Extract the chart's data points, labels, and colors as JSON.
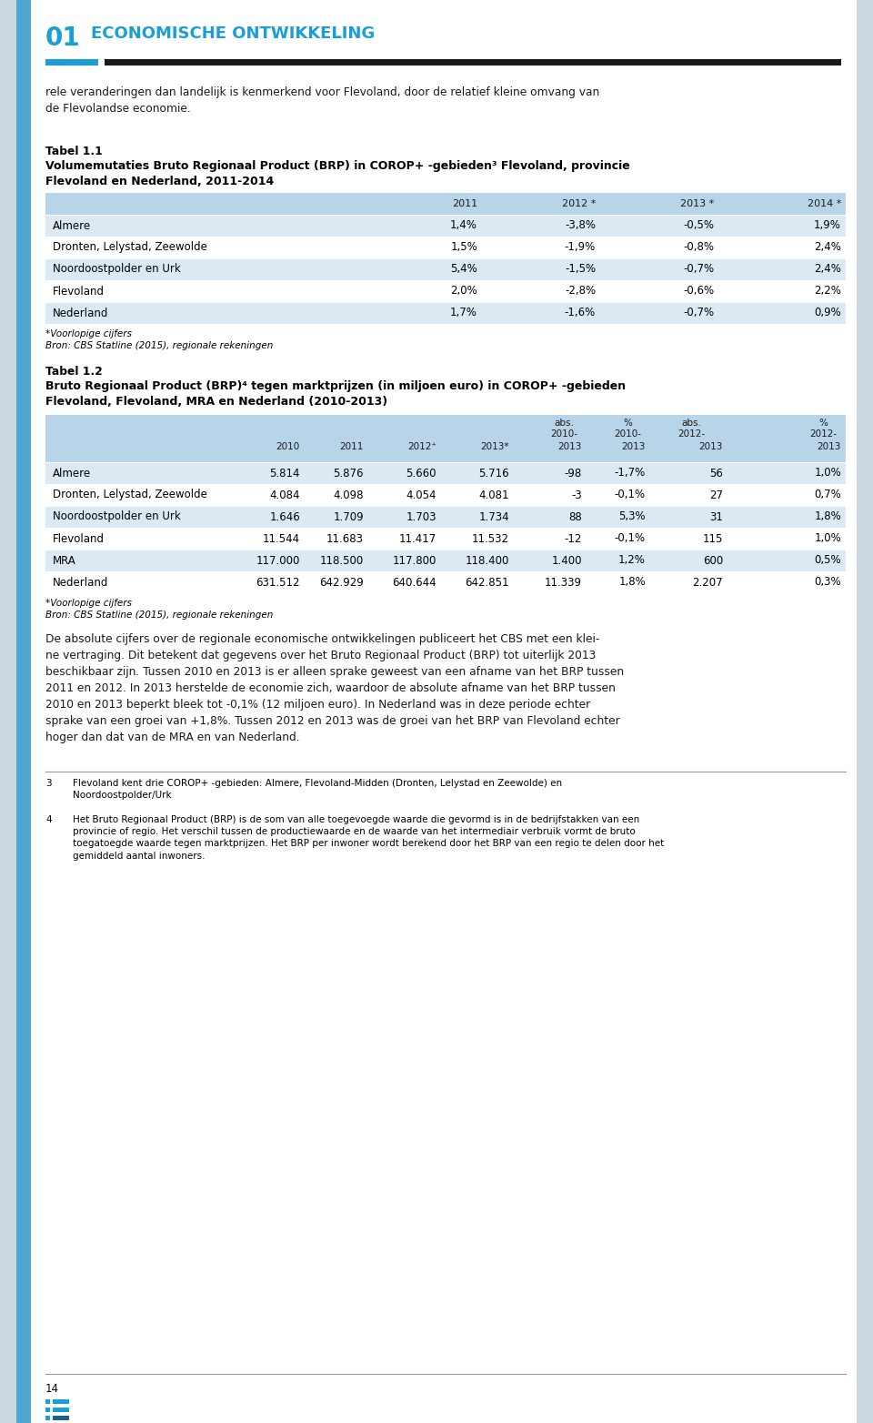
{
  "page_bg": "#ccd9e3",
  "content_bg": "#ffffff",
  "blue_accent": "#1a9fd4",
  "dark_bar": "#1a1a1a",
  "table_header_bg": "#b8d4e8",
  "table_row_light": "#dce9f3",
  "sidebar_blue": "#4fa8d0",
  "header_number": "01",
  "header_title": "ECONOMISCHE ONTWIKKELING",
  "intro_text": "rele veranderingen dan landelijk is kenmerkend voor Flevoland, door de relatief kleine omvang van\nde Flevolandse economie.",
  "tabel1_label": "Tabel 1.1",
  "tabel1_title": "Volumemutaties Bruto Regionaal Product (BRP) in COROP+ -gebieden³ Flevoland, provincie\nFlevoland en Nederland, 2011-2014",
  "tabel1_col_headers": [
    "2011",
    "2012 *",
    "2013 *",
    "2014 *"
  ],
  "tabel1_rows": [
    [
      "Almere",
      "1,4%",
      "-3,8%",
      "-0,5%",
      "1,9%"
    ],
    [
      "Dronten, Lelystad, Zeewolde",
      "1,5%",
      "-1,9%",
      "-0,8%",
      "2,4%"
    ],
    [
      "Noordoostpolder en Urk",
      "5,4%",
      "-1,5%",
      "-0,7%",
      "2,4%"
    ],
    [
      "Flevoland",
      "2,0%",
      "-2,8%",
      "-0,6%",
      "2,2%"
    ],
    [
      "Nederland",
      "1,7%",
      "-1,6%",
      "-0,7%",
      "0,9%"
    ]
  ],
  "tabel1_footnote1": "*Voorlopige cijfers",
  "tabel1_footnote2": "Bron: CBS Statline (2015), regionale rekeningen",
  "tabel2_label": "Tabel 1.2",
  "tabel2_title": "Bruto Regionaal Product (BRP)⁴ tegen marktprijzen (in miljoen euro) in COROP+ -gebieden\nFlevoland, Flevoland, MRA en Nederland (2010-2013)",
  "tabel2_col_headers_line1": [
    "abs.",
    "%",
    "abs.",
    "%"
  ],
  "tabel2_col_headers_line2": [
    "2010-",
    "2010-",
    "2012-",
    "2012-"
  ],
  "tabel2_col_headers_line3": [
    "2010",
    "2011",
    "2012⁺",
    "2013*",
    "2013",
    "2013",
    "2013",
    "2013"
  ],
  "tabel2_rows": [
    [
      "Almere",
      "5.814",
      "5.876",
      "5.660",
      "5.716",
      "-98",
      "-1,7%",
      "56",
      "1,0%"
    ],
    [
      "Dronten, Lelystad, Zeewolde",
      "4.084",
      "4.098",
      "4.054",
      "4.081",
      "-3",
      "-0,1%",
      "27",
      "0,7%"
    ],
    [
      "Noordoostpolder en Urk",
      "1.646",
      "1.709",
      "1.703",
      "1.734",
      "88",
      "5,3%",
      "31",
      "1,8%"
    ],
    [
      "Flevoland",
      "11.544",
      "11.683",
      "11.417",
      "11.532",
      "-12",
      "-0,1%",
      "115",
      "1,0%"
    ],
    [
      "MRA",
      "117.000",
      "118.500",
      "117.800",
      "118.400",
      "1.400",
      "1,2%",
      "600",
      "0,5%"
    ],
    [
      "Nederland",
      "631.512",
      "642.929",
      "640.644",
      "642.851",
      "11.339",
      "1,8%",
      "2.207",
      "0,3%"
    ]
  ],
  "tabel2_footnote1": "*Voorlopige cijfers",
  "tabel2_footnote2": "Bron: CBS Statline (2015), regionale rekeningen",
  "body_text": "De absolute cijfers over de regionale economische ontwikkelingen publiceert het CBS met een klei-\nne vertraging. Dit betekent dat gegevens over het Bruto Regionaal Product (BRP) tot uiterlijk 2013\nbeschikbaar zijn. Tussen 2010 en 2013 is er alleen sprake geweest van een afname van het BRP tussen\n2011 en 2012. In 2013 herstelde de economie zich, waardoor de absolute afname van het BRP tussen\n2010 en 2013 beperkt bleek tot -0,1% (12 miljoen euro). In Nederland was in deze periode echter\nsprake van een groei van +1,8%. Tussen 2012 en 2013 was de groei van het BRP van Flevoland echter\nhoger dan dat van de MRA en van Nederland.",
  "footnote3_num": "3",
  "footnote3_text": "Flevoland kent drie COROP+ -gebieden: Almere, Flevoland-Midden (Dronten, Lelystad en Zeewolde) en\nNoordoostpolder/Urk",
  "footnote4_num": "4",
  "footnote4_text": "Het Bruto Regionaal Product (BRP) is de som van alle toegevoegde waarde die gevormd is in de bedrijfstakken van een\nprovincie of regio. Het verschil tussen de productiewaarde en de waarde van het intermediair verbruik vormt de bruto\ntoegatoegde waarde tegen marktprijzen. Het BRP per inwoner wordt berekend door het BRP van een regio te delen door het\ngemiddeld aantal inwoners.",
  "page_number": "14"
}
